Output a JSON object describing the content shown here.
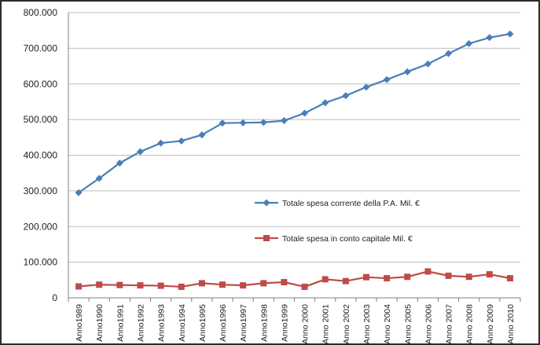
{
  "chart_data": {
    "type": "line",
    "categories": [
      "Anno1989",
      "Anno1990",
      "Anno1991",
      "Anno1992",
      "Anno1993",
      "Anno1994",
      "Anno1995",
      "Anno1996",
      "Anno1997",
      "Anno1998",
      "Anno1999",
      "Anno 2000",
      "Anno 2001",
      "Anno 2002",
      "Anno 2003",
      "Anno 2004",
      "Anno 2005",
      "Anno 2006",
      "Anno 2007",
      "Anno 2008",
      "Anno 2009",
      "Anno 2010"
    ],
    "y_ticks": [
      "0",
      "100.000",
      "200.000",
      "300.000",
      "400.000",
      "500.000",
      "600.000",
      "700.000",
      "800.000"
    ],
    "ylim": [
      0,
      800000
    ],
    "grid": true,
    "legend_position": "center-right",
    "series": [
      {
        "name": "Totale spesa corrente della P.A.  Mil. €",
        "color": "#4a7ebb",
        "marker": "diamond",
        "values": [
          295000,
          335000,
          378000,
          410000,
          434000,
          440000,
          457000,
          490000,
          491000,
          492000,
          497000,
          518000,
          547000,
          567000,
          591000,
          612000,
          634000,
          656000,
          685000,
          713000,
          730000,
          740000
        ]
      },
      {
        "name": "Totale spesa in conto capitale      Mil. €",
        "color": "#be4b48",
        "marker": "square",
        "values": [
          32000,
          37000,
          36000,
          35000,
          34000,
          31000,
          41000,
          37000,
          35000,
          41000,
          44000,
          31000,
          52000,
          47000,
          58000,
          55000,
          59000,
          74000,
          62000,
          59000,
          66000,
          55000
        ]
      }
    ]
  }
}
